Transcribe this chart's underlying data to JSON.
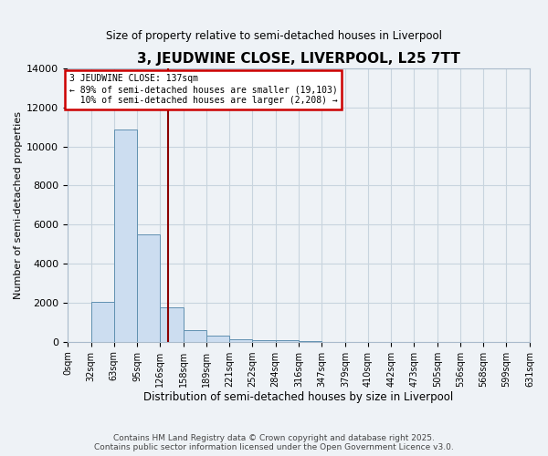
{
  "title": "3, JEUDWINE CLOSE, LIVERPOOL, L25 7TT",
  "subtitle": "Size of property relative to semi-detached houses in Liverpool",
  "xlabel": "Distribution of semi-detached houses by size in Liverpool",
  "ylabel": "Number of semi-detached properties",
  "property_size": 137,
  "property_label": "3 JEUDWINE CLOSE: 137sqm",
  "pct_smaller": 89,
  "pct_larger": 10,
  "n_smaller": 19103,
  "n_larger": 2208,
  "bin_edges": [
    0,
    32,
    63,
    95,
    126,
    158,
    189,
    221,
    252,
    284,
    316,
    347,
    379,
    410,
    442,
    473,
    505,
    536,
    568,
    599,
    631
  ],
  "bar_heights": [
    0,
    2050,
    10850,
    5500,
    1750,
    600,
    320,
    120,
    70,
    80,
    30,
    0,
    0,
    0,
    0,
    0,
    0,
    0,
    0,
    0
  ],
  "bar_color": "#ccddf0",
  "bar_edge_color": "#6090b0",
  "property_line_color": "#8b0000",
  "annotation_box_edge_color": "#cc0000",
  "bg_color": "#eef2f6",
  "grid_color": "#c8d4de",
  "ylim": [
    0,
    14000
  ],
  "yticks": [
    0,
    2000,
    4000,
    6000,
    8000,
    10000,
    12000,
    14000
  ],
  "tick_labels": [
    "0sqm",
    "32sqm",
    "63sqm",
    "95sqm",
    "126sqm",
    "158sqm",
    "189sqm",
    "221sqm",
    "252sqm",
    "284sqm",
    "316sqm",
    "347sqm",
    "379sqm",
    "410sqm",
    "442sqm",
    "473sqm",
    "505sqm",
    "536sqm",
    "568sqm",
    "599sqm",
    "631sqm"
  ],
  "footer_line1": "Contains HM Land Registry data © Crown copyright and database right 2025.",
  "footer_line2": "Contains public sector information licensed under the Open Government Licence v3.0."
}
